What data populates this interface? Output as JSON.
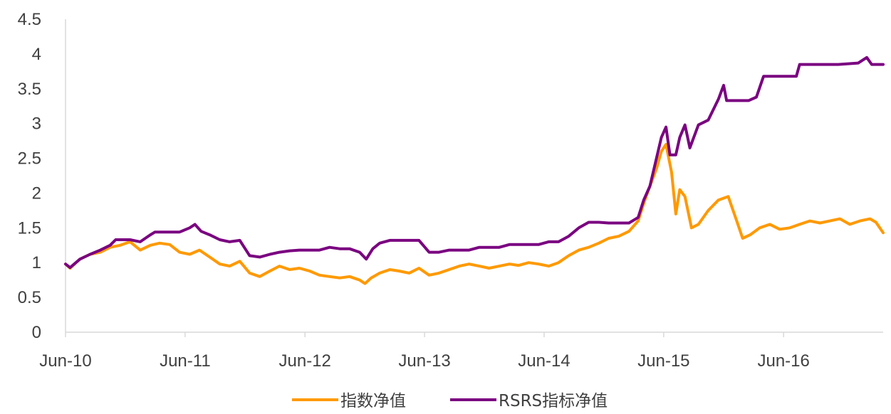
{
  "colors": {
    "index": "#FF9900",
    "rsrs": "#7A0080",
    "axis": "#D9D9D9",
    "text": "#404040"
  },
  "chart_data": {
    "type": "line",
    "ylim": [
      0,
      4.5
    ],
    "xlim": [
      "2010-06-01",
      "2017-04-01"
    ],
    "y_ticks": [
      "0",
      "0.5",
      "1",
      "1.5",
      "2",
      "2.5",
      "3",
      "3.5",
      "4",
      "4.5"
    ],
    "x_ticks": [
      {
        "date": "2010-06-01",
        "label": "Jun-10"
      },
      {
        "date": "2011-06-01",
        "label": "Jun-11"
      },
      {
        "date": "2012-06-01",
        "label": "Jun-12"
      },
      {
        "date": "2013-06-01",
        "label": "Jun-13"
      },
      {
        "date": "2014-06-01",
        "label": "Jun-14"
      },
      {
        "date": "2015-06-01",
        "label": "Jun-15"
      },
      {
        "date": "2016-06-01",
        "label": "Jun-16"
      }
    ],
    "legend_position": "bottom",
    "series": [
      {
        "name": "指数净值",
        "color": "#FF9900",
        "points": [
          [
            "2010-06-01",
            0.98
          ],
          [
            "2010-06-15",
            0.92
          ],
          [
            "2010-07-15",
            1.05
          ],
          [
            "2010-08-15",
            1.12
          ],
          [
            "2010-09-15",
            1.15
          ],
          [
            "2010-10-15",
            1.22
          ],
          [
            "2010-11-15",
            1.25
          ],
          [
            "2010-12-15",
            1.3
          ],
          [
            "2011-01-15",
            1.18
          ],
          [
            "2011-02-15",
            1.25
          ],
          [
            "2011-03-15",
            1.28
          ],
          [
            "2011-04-15",
            1.26
          ],
          [
            "2011-05-15",
            1.15
          ],
          [
            "2011-06-15",
            1.12
          ],
          [
            "2011-07-15",
            1.18
          ],
          [
            "2011-08-15",
            1.08
          ],
          [
            "2011-09-15",
            0.98
          ],
          [
            "2011-10-15",
            0.95
          ],
          [
            "2011-11-15",
            1.02
          ],
          [
            "2011-12-15",
            0.85
          ],
          [
            "2012-01-15",
            0.8
          ],
          [
            "2012-02-15",
            0.88
          ],
          [
            "2012-03-15",
            0.95
          ],
          [
            "2012-04-15",
            0.9
          ],
          [
            "2012-05-15",
            0.92
          ],
          [
            "2012-06-15",
            0.88
          ],
          [
            "2012-07-15",
            0.82
          ],
          [
            "2012-08-15",
            0.8
          ],
          [
            "2012-09-15",
            0.78
          ],
          [
            "2012-10-15",
            0.8
          ],
          [
            "2012-11-15",
            0.75
          ],
          [
            "2012-12-01",
            0.7
          ],
          [
            "2012-12-20",
            0.78
          ],
          [
            "2013-01-15",
            0.85
          ],
          [
            "2013-02-15",
            0.9
          ],
          [
            "2013-03-15",
            0.88
          ],
          [
            "2013-04-15",
            0.85
          ],
          [
            "2013-05-15",
            0.92
          ],
          [
            "2013-06-15",
            0.82
          ],
          [
            "2013-07-15",
            0.85
          ],
          [
            "2013-08-15",
            0.9
          ],
          [
            "2013-09-15",
            0.95
          ],
          [
            "2013-10-15",
            0.98
          ],
          [
            "2013-11-15",
            0.95
          ],
          [
            "2013-12-15",
            0.92
          ],
          [
            "2014-01-15",
            0.95
          ],
          [
            "2014-02-15",
            0.98
          ],
          [
            "2014-03-15",
            0.96
          ],
          [
            "2014-04-15",
            1.0
          ],
          [
            "2014-05-15",
            0.98
          ],
          [
            "2014-06-15",
            0.95
          ],
          [
            "2014-07-15",
            1.0
          ],
          [
            "2014-08-15",
            1.1
          ],
          [
            "2014-09-15",
            1.18
          ],
          [
            "2014-10-15",
            1.22
          ],
          [
            "2014-11-15",
            1.28
          ],
          [
            "2014-12-15",
            1.35
          ],
          [
            "2015-01-15",
            1.38
          ],
          [
            "2015-02-15",
            1.45
          ],
          [
            "2015-03-15",
            1.6
          ],
          [
            "2015-04-01",
            1.85
          ],
          [
            "2015-04-20",
            2.1
          ],
          [
            "2015-05-10",
            2.35
          ],
          [
            "2015-05-25",
            2.6
          ],
          [
            "2015-06-08",
            2.7
          ],
          [
            "2015-06-25",
            2.3
          ],
          [
            "2015-07-08",
            1.7
          ],
          [
            "2015-07-20",
            2.05
          ],
          [
            "2015-08-05",
            1.95
          ],
          [
            "2015-08-25",
            1.5
          ],
          [
            "2015-09-15",
            1.55
          ],
          [
            "2015-10-15",
            1.75
          ],
          [
            "2015-11-15",
            1.9
          ],
          [
            "2015-12-15",
            1.95
          ],
          [
            "2016-01-10",
            1.6
          ],
          [
            "2016-01-28",
            1.35
          ],
          [
            "2016-02-20",
            1.4
          ],
          [
            "2016-03-20",
            1.5
          ],
          [
            "2016-04-20",
            1.55
          ],
          [
            "2016-05-20",
            1.48
          ],
          [
            "2016-06-20",
            1.5
          ],
          [
            "2016-07-20",
            1.55
          ],
          [
            "2016-08-20",
            1.6
          ],
          [
            "2016-09-20",
            1.57
          ],
          [
            "2016-10-20",
            1.6
          ],
          [
            "2016-11-20",
            1.63
          ],
          [
            "2016-12-20",
            1.55
          ],
          [
            "2017-01-20",
            1.6
          ],
          [
            "2017-02-20",
            1.63
          ],
          [
            "2017-03-10",
            1.58
          ],
          [
            "2017-04-01",
            1.43
          ]
        ]
      },
      {
        "name": "RSRS指标净值",
        "color": "#7A0080",
        "points": [
          [
            "2010-06-01",
            0.98
          ],
          [
            "2010-06-15",
            0.93
          ],
          [
            "2010-07-15",
            1.05
          ],
          [
            "2010-08-15",
            1.12
          ],
          [
            "2010-09-15",
            1.18
          ],
          [
            "2010-10-15",
            1.25
          ],
          [
            "2010-11-01",
            1.33
          ],
          [
            "2010-12-15",
            1.33
          ],
          [
            "2011-01-15",
            1.3
          ],
          [
            "2011-02-15",
            1.4
          ],
          [
            "2011-03-01",
            1.44
          ],
          [
            "2011-04-15",
            1.44
          ],
          [
            "2011-05-15",
            1.44
          ],
          [
            "2011-06-15",
            1.5
          ],
          [
            "2011-07-01",
            1.55
          ],
          [
            "2011-07-20",
            1.45
          ],
          [
            "2011-08-15",
            1.4
          ],
          [
            "2011-09-15",
            1.33
          ],
          [
            "2011-10-15",
            1.3
          ],
          [
            "2011-11-15",
            1.32
          ],
          [
            "2011-12-15",
            1.1
          ],
          [
            "2012-01-15",
            1.08
          ],
          [
            "2012-02-15",
            1.12
          ],
          [
            "2012-03-15",
            1.15
          ],
          [
            "2012-04-15",
            1.17
          ],
          [
            "2012-05-15",
            1.18
          ],
          [
            "2012-06-15",
            1.18
          ],
          [
            "2012-07-15",
            1.18
          ],
          [
            "2012-08-15",
            1.22
          ],
          [
            "2012-09-15",
            1.2
          ],
          [
            "2012-10-15",
            1.2
          ],
          [
            "2012-11-15",
            1.15
          ],
          [
            "2012-12-05",
            1.05
          ],
          [
            "2012-12-25",
            1.2
          ],
          [
            "2013-01-15",
            1.28
          ],
          [
            "2013-02-15",
            1.32
          ],
          [
            "2013-03-15",
            1.32
          ],
          [
            "2013-04-15",
            1.32
          ],
          [
            "2013-05-15",
            1.32
          ],
          [
            "2013-06-15",
            1.15
          ],
          [
            "2013-07-15",
            1.15
          ],
          [
            "2013-08-15",
            1.18
          ],
          [
            "2013-09-15",
            1.18
          ],
          [
            "2013-10-15",
            1.18
          ],
          [
            "2013-11-15",
            1.22
          ],
          [
            "2013-12-15",
            1.22
          ],
          [
            "2014-01-15",
            1.22
          ],
          [
            "2014-02-15",
            1.26
          ],
          [
            "2014-03-15",
            1.26
          ],
          [
            "2014-04-15",
            1.26
          ],
          [
            "2014-05-15",
            1.26
          ],
          [
            "2014-06-15",
            1.3
          ],
          [
            "2014-07-15",
            1.3
          ],
          [
            "2014-08-15",
            1.38
          ],
          [
            "2014-09-15",
            1.5
          ],
          [
            "2014-10-15",
            1.58
          ],
          [
            "2014-11-15",
            1.58
          ],
          [
            "2014-12-15",
            1.57
          ],
          [
            "2015-01-15",
            1.57
          ],
          [
            "2015-02-15",
            1.57
          ],
          [
            "2015-03-15",
            1.65
          ],
          [
            "2015-04-01",
            1.9
          ],
          [
            "2015-04-20",
            2.1
          ],
          [
            "2015-05-10",
            2.5
          ],
          [
            "2015-05-25",
            2.8
          ],
          [
            "2015-06-08",
            2.95
          ],
          [
            "2015-06-20",
            2.55
          ],
          [
            "2015-07-08",
            2.55
          ],
          [
            "2015-07-20",
            2.8
          ],
          [
            "2015-08-05",
            2.98
          ],
          [
            "2015-08-20",
            2.65
          ],
          [
            "2015-09-15",
            2.98
          ],
          [
            "2015-10-15",
            3.05
          ],
          [
            "2015-11-15",
            3.35
          ],
          [
            "2015-12-01",
            3.55
          ],
          [
            "2015-12-10",
            3.33
          ],
          [
            "2016-01-15",
            3.33
          ],
          [
            "2016-02-15",
            3.33
          ],
          [
            "2016-03-10",
            3.38
          ],
          [
            "2016-04-01",
            3.68
          ],
          [
            "2016-05-15",
            3.68
          ],
          [
            "2016-06-15",
            3.68
          ],
          [
            "2016-07-10",
            3.68
          ],
          [
            "2016-07-20",
            3.85
          ],
          [
            "2016-09-15",
            3.85
          ],
          [
            "2016-11-15",
            3.85
          ],
          [
            "2017-01-15",
            3.87
          ],
          [
            "2017-02-10",
            3.95
          ],
          [
            "2017-02-25",
            3.85
          ],
          [
            "2017-04-01",
            3.85
          ]
        ]
      }
    ]
  }
}
